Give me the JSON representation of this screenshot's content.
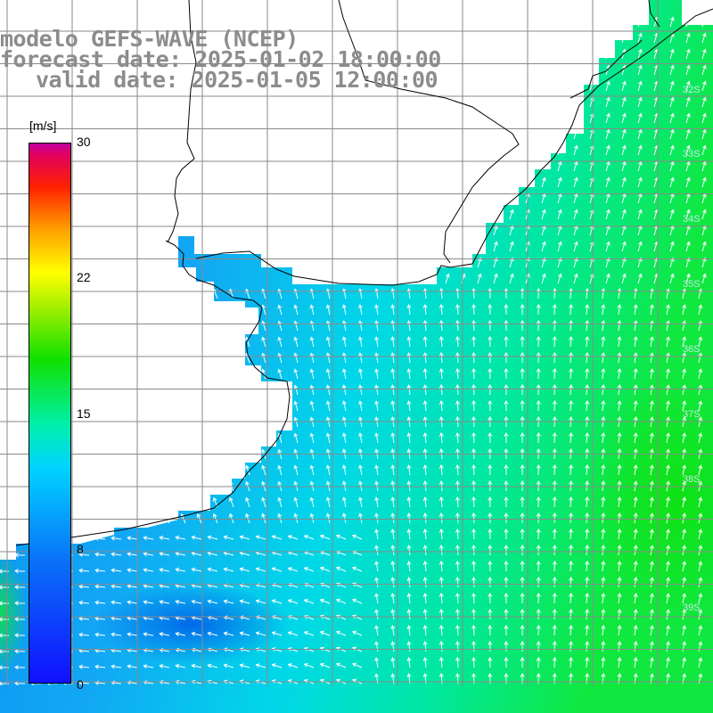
{
  "header": {
    "line1": "modelo GEFS-WAVE (NCEP)",
    "line2": "forecast date: 2025-01-02 18:00:00",
    "line3": "valid date: 2025-01-05 12:00:00"
  },
  "colorbar": {
    "unit": "[m/s]",
    "ticks": [
      "30",
      "22",
      "15",
      "8",
      "0"
    ],
    "range": [
      0,
      30
    ],
    "colors": [
      "#1010ff",
      "#0a6ef8",
      "#00d4ff",
      "#00f0a8",
      "#10e000",
      "#a8f000",
      "#ffff00",
      "#ffa000",
      "#ff2000",
      "#c000a0"
    ]
  },
  "lat_labels": [
    "32S",
    "33S",
    "34S",
    "35S",
    "36S",
    "37S",
    "38S",
    "39S"
  ],
  "colors": {
    "land": "#ffffff",
    "grid": "#8a8a8a",
    "coast": "#000000",
    "arrows": "#ffffff"
  }
}
